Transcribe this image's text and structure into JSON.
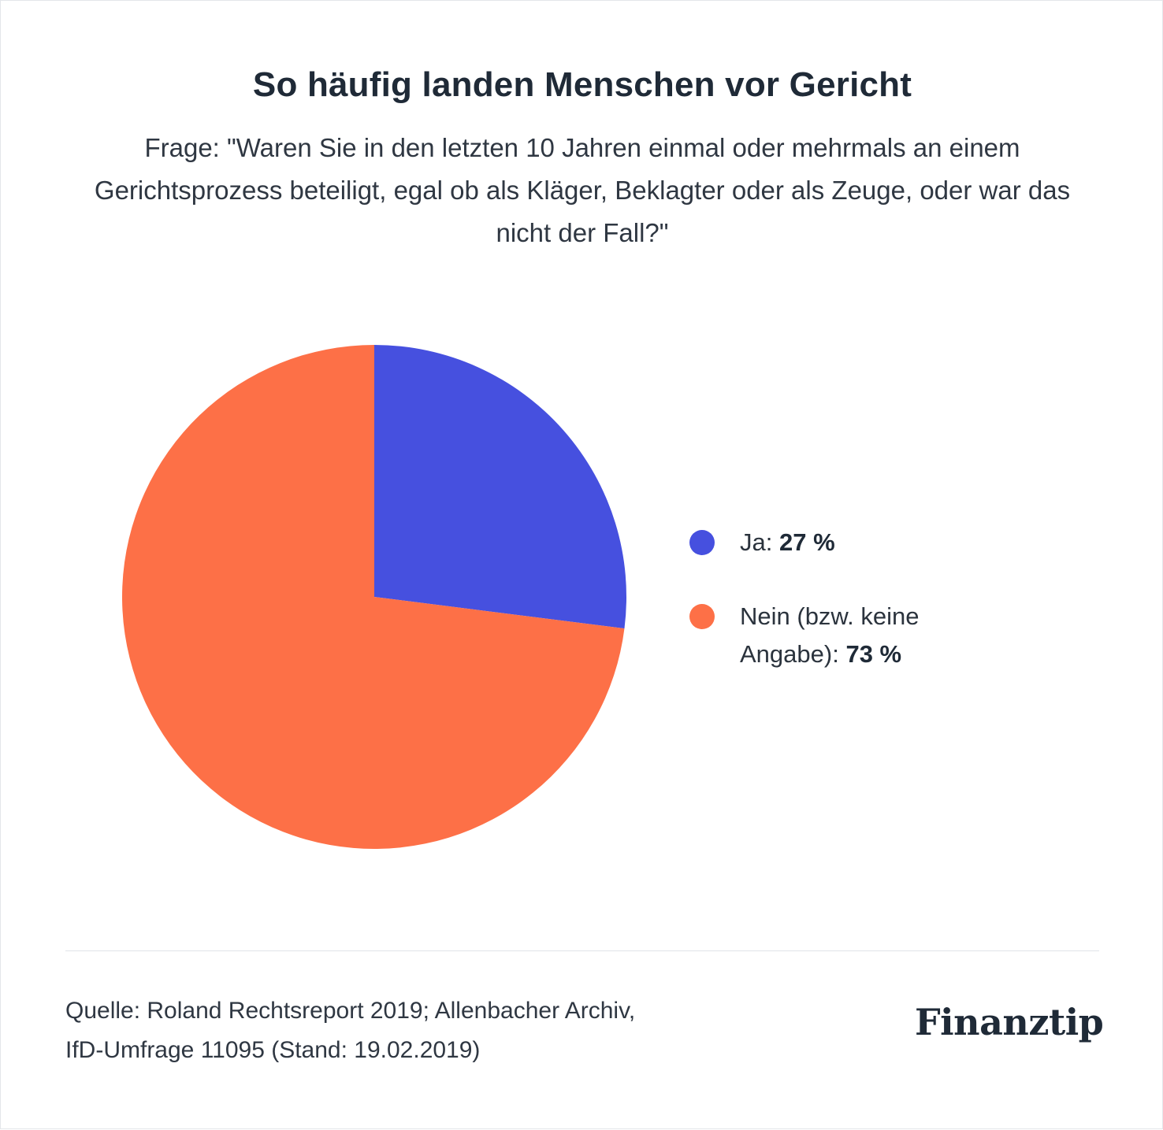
{
  "header": {
    "title": "So häufig landen Menschen vor Gericht",
    "subtitle": "Frage: \"Waren Sie in den letzten 10 Jahren einmal oder mehrmals an einem Gerichtsprozess beteiligt, egal ob als Kläger, Beklagter oder als Zeuge, oder war das nicht der Fall?\""
  },
  "chart_data": {
    "type": "pie",
    "title": "So häufig landen Menschen vor Gericht",
    "categories": [
      "Ja",
      "Nein (bzw. keine Angabe)"
    ],
    "values": [
      27,
      73
    ],
    "colors": [
      "#4650df",
      "#fd7047"
    ],
    "legend_position": "right",
    "legend": [
      {
        "label": "Ja:",
        "value_text": "27 %"
      },
      {
        "label": "Nein (bzw. keine Angabe):",
        "value_text": "73 %"
      }
    ]
  },
  "footer": {
    "source_line1": "Quelle: Roland Rechtsreport 2019; Allenbacher Archiv,",
    "source_line2": "IfD-Umfrage 11095 (Stand: 19.02.2019)",
    "logo": "Finanztip"
  }
}
